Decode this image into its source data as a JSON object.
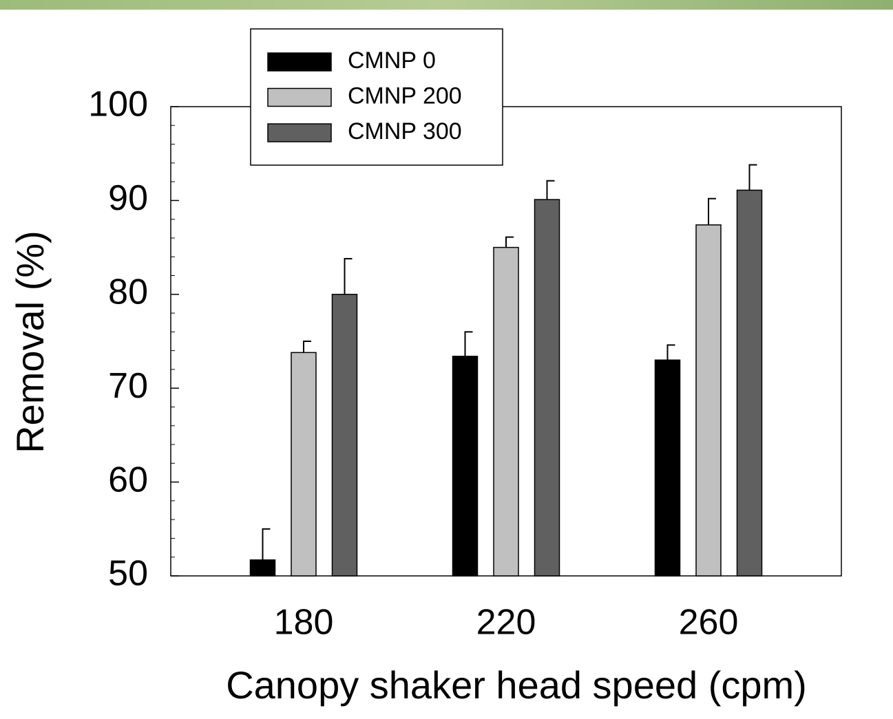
{
  "chart_data": {
    "type": "bar",
    "x_label": "Canopy shaker head speed (cpm)",
    "y_label": "Removal (%)",
    "categories": [
      "180",
      "220",
      "260"
    ],
    "series": [
      {
        "name": "CMNP 0",
        "color": "#000000",
        "values": [
          51.7,
          73.4,
          73.0
        ],
        "errors": [
          3.3,
          2.6,
          1.6
        ]
      },
      {
        "name": "CMNP 200",
        "color": "#c0c0c0",
        "values": [
          73.8,
          85.0,
          87.4
        ],
        "errors": [
          1.2,
          1.1,
          2.8
        ]
      },
      {
        "name": "CMNP 300",
        "color": "#606060",
        "values": [
          80.0,
          90.1,
          91.1
        ],
        "errors": [
          3.8,
          2.0,
          2.7
        ]
      }
    ],
    "ylim": [
      50,
      100
    ],
    "yticks": [
      50,
      60,
      70,
      80,
      90,
      100
    ],
    "yminorticks": [
      52,
      54,
      56,
      58,
      62,
      64,
      66,
      68,
      72,
      74,
      76,
      78,
      82,
      84,
      86,
      88,
      92,
      94,
      96,
      98
    ],
    "legend_position": "upper left"
  }
}
